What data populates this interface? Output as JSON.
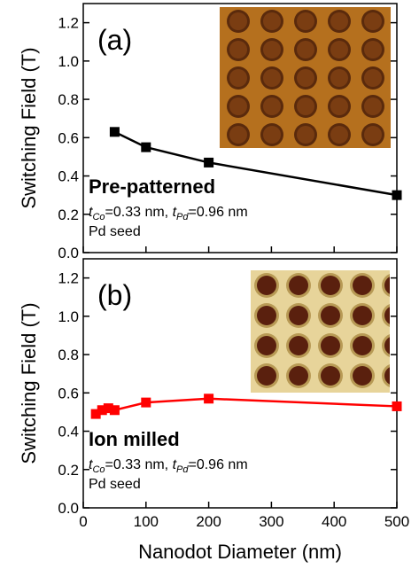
{
  "chart_data": [
    {
      "type": "line",
      "panel_label": "(a)",
      "annotation": "Pre-patterned",
      "conditions": [
        "t",
        "Co",
        "=0.33 nm, ",
        "t",
        "Pd",
        "=0.96 nm"
      ],
      "note": "Pd seed",
      "ylabel": "Switching Field (T)",
      "x": [
        50,
        100,
        200,
        500
      ],
      "series": [
        {
          "color": "#000000",
          "values": [
            0.63,
            0.55,
            0.47,
            0.3
          ]
        }
      ],
      "xlim": [
        0,
        500
      ],
      "xticks": [
        0,
        100,
        200,
        300,
        400,
        500
      ],
      "ylim": [
        0,
        1.3
      ],
      "yticks": [
        {
          "value": 0,
          "label": "0.0"
        },
        0.2,
        0.4,
        0.6,
        0.8,
        {
          "value": 1,
          "label": "1.0"
        },
        1.2
      ]
    },
    {
      "type": "line",
      "panel_label": "(b)",
      "annotation": "Ion milled",
      "conditions": [
        "t",
        "Co",
        "=0.33 nm, ",
        "t",
        "Pd",
        "=0.96 nm"
      ],
      "note": "Pd seed",
      "ylabel": "Switching Field (T)",
      "xlabel": "Nanodot Diameter (nm)",
      "x": [
        20,
        30,
        40,
        50,
        100,
        200,
        500
      ],
      "series": [
        {
          "color": "#ff0000",
          "values": [
            0.49,
            0.51,
            0.52,
            0.51,
            0.55,
            0.57,
            0.53
          ]
        }
      ],
      "xlim": [
        0,
        500
      ],
      "xticks": [
        0,
        100,
        200,
        300,
        400,
        500
      ],
      "ylim": [
        0,
        1.3
      ],
      "yticks": [
        {
          "value": 0,
          "label": "0.0"
        },
        0.2,
        0.4,
        0.6,
        0.8,
        {
          "value": 1,
          "label": "1.0"
        },
        1.2
      ]
    }
  ]
}
